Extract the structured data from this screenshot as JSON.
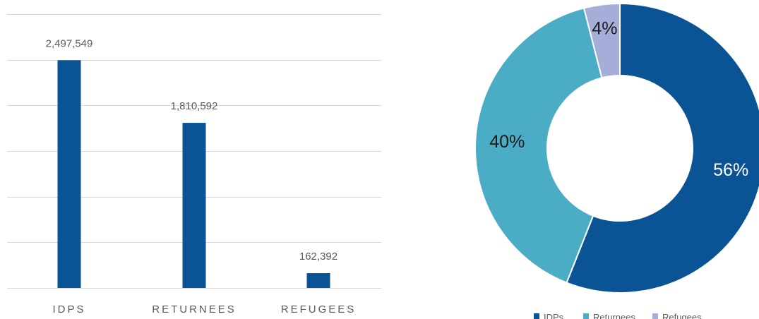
{
  "chart_data": [
    {
      "type": "bar",
      "categories": [
        "IDPS",
        "RETURNEES",
        "REFUGEES"
      ],
      "values": [
        2497549,
        1810592,
        162392
      ],
      "data_labels": [
        "2,497,549",
        "1,810,592",
        "162,392"
      ],
      "ylim": [
        0,
        2500000
      ],
      "grid": true,
      "y_axis_labels_visible": false,
      "colors": {
        "bar": "#0a5394",
        "grid": "#d9d9d9",
        "label": "#595959"
      }
    },
    {
      "type": "pie",
      "variant": "donut",
      "labels": [
        "IDPs",
        "Returnees",
        "Refugees"
      ],
      "values": [
        56,
        40,
        4
      ],
      "data_labels": [
        "56%",
        "40%",
        "4%"
      ],
      "colors": [
        "#0a5394",
        "#4bacc6",
        "#a5aed8"
      ],
      "legend_position": "bottom",
      "label_color": "#1a1a1a",
      "label_color_on_dark": "#ffffff"
    }
  ]
}
